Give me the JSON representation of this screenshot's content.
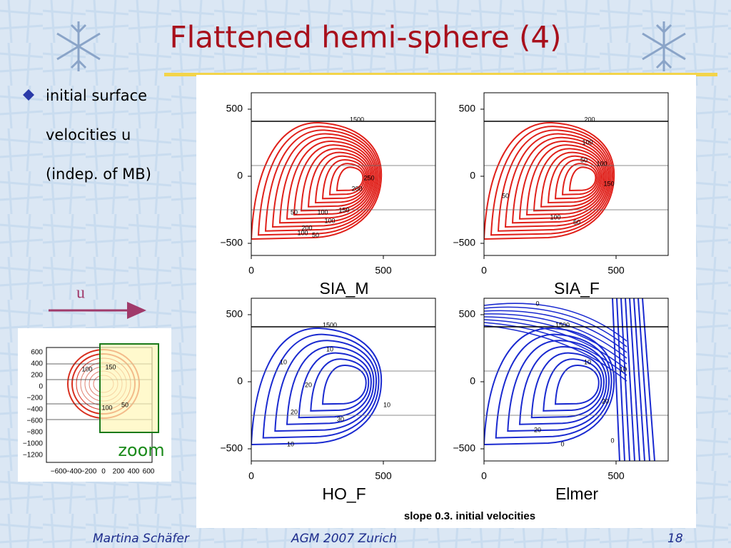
{
  "header": {
    "title": "Flattened hemi-sphere (4)"
  },
  "bullet": {
    "lines": [
      "initial surface",
      "velocities u",
      "(indep. of MB)"
    ]
  },
  "arrow_label": "u",
  "inset": {
    "yticks": [
      "600",
      "400",
      "200",
      "0",
      "−200",
      "−400",
      "−600",
      "−800",
      "−1000",
      "−1200"
    ],
    "xticks": [
      "−600",
      "−400",
      "−200",
      "0",
      "200",
      "400",
      "600"
    ],
    "contour_labels": [
      "100",
      "150",
      "100",
      "50"
    ],
    "zoom_label": "zoom"
  },
  "figure": {
    "panels": [
      {
        "title": "SIA_M",
        "yticks": [
          "500",
          "0",
          "−500"
        ],
        "xticks": [
          "0",
          "500"
        ],
        "contour_labels": [
          "1500",
          "50",
          "100",
          "200",
          "150",
          "250",
          "200",
          "100",
          "50",
          "100"
        ]
      },
      {
        "title": "SIA_F",
        "yticks": [
          "500",
          "0",
          "−500"
        ],
        "xticks": [
          "0",
          "500"
        ],
        "contour_labels": [
          "200",
          "50",
          "100",
          "150",
          "100",
          "50",
          "100",
          "50"
        ]
      },
      {
        "title": "HO_F",
        "yticks": [
          "500",
          "0",
          "−500"
        ],
        "xticks": [
          "0",
          "500"
        ],
        "contour_labels": [
          "1500",
          "10",
          "10",
          "20",
          "20",
          "30",
          "10",
          "10"
        ]
      },
      {
        "title": "Elmer",
        "yticks": [
          "500",
          "0",
          "−500"
        ],
        "xticks": [
          "0",
          "500"
        ],
        "contour_labels": [
          "0",
          "1500",
          "10",
          "20",
          "10",
          "20",
          "0",
          "0"
        ]
      }
    ],
    "caption": "slope 0.3. initial velocities"
  },
  "footer": {
    "author": "Martina Schäfer",
    "event": "AGM 2007 Zurich",
    "page": "18"
  }
}
